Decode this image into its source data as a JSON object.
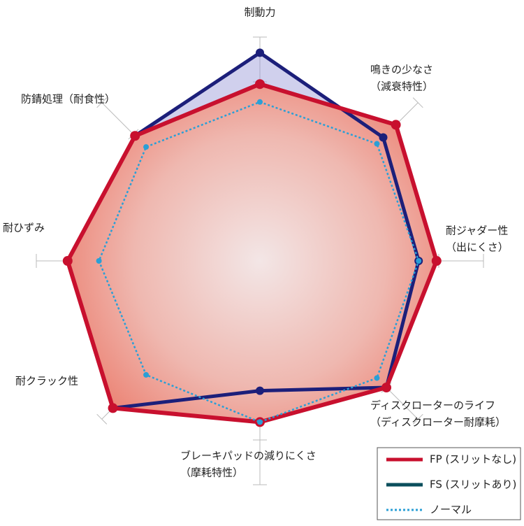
{
  "chart_data": {
    "type": "radar",
    "categories": [
      [
        "制動力"
      ],
      [
        "鳴きの少なさ",
        "（減衰特性）"
      ],
      [
        "耐ジャダー性",
        "（出にくさ）"
      ],
      [
        "ディスクローターのライフ",
        "（ディスクローター耐摩耗）"
      ],
      [
        "ブレーキパッドの減りにくさ",
        "（摩耗特性）"
      ],
      [
        "耐クラック性"
      ],
      [
        "耐ひずみ"
      ],
      [
        "防錆処理（耐食性）"
      ]
    ],
    "rlim": [
      0,
      10
    ],
    "rticks": [
      2,
      4,
      6,
      8,
      10
    ],
    "series": [
      {
        "name": "FS (スリットあり)",
        "color": "#1c1f7a",
        "values": [
          9.3,
          7.8,
          7.1,
          8.0,
          5.8,
          9.3,
          8.6,
          7.9
        ]
      },
      {
        "name": "FP (スリットなし)",
        "color": "#c8102e",
        "values": [
          7.9,
          8.6,
          7.9,
          8.0,
          7.2,
          9.3,
          8.6,
          7.9
        ]
      },
      {
        "name": "ノーマル",
        "color": "#2a9fd6",
        "values": [
          7.1,
          7.4,
          7.1,
          7.4,
          7.2,
          7.2,
          7.2,
          7.2
        ]
      }
    ]
  }
}
